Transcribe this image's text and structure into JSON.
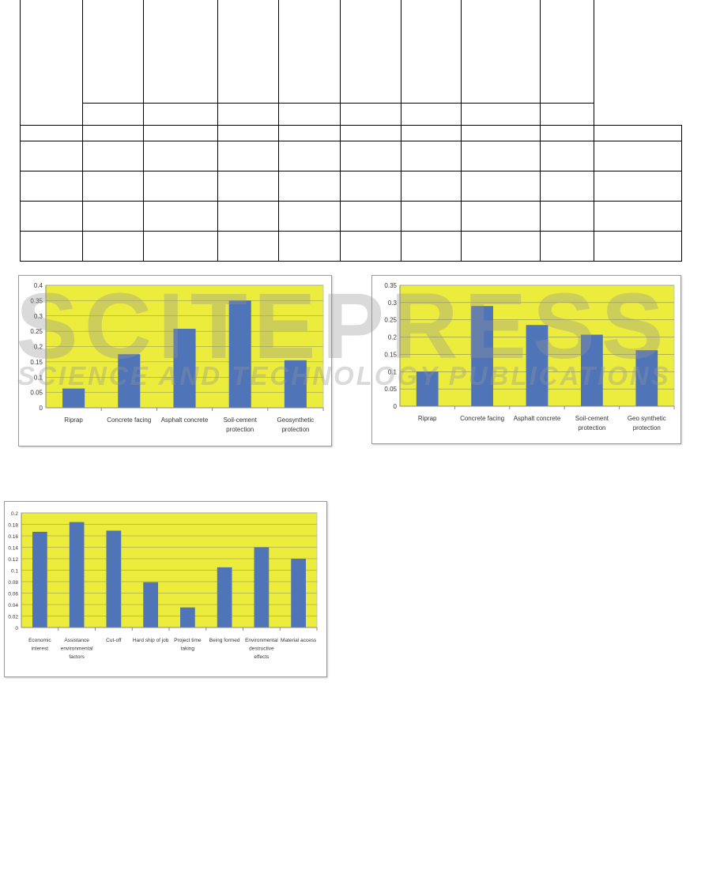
{
  "watermark": {
    "main": "SCITEPRESS",
    "sub": "SCIENCE AND TECHNOLOGY PUBLICATIONS"
  },
  "colors": {
    "plot_bg": "#ecec3c",
    "bar": "#4f74b8",
    "grid": "#8c8c5a"
  },
  "chart_data": [
    {
      "type": "bar",
      "categories": [
        "Riprap",
        "Concrete facing",
        "Asphalt concrete",
        "Soil-cement protection",
        "Geosynthetic protection"
      ],
      "values": [
        0.063,
        0.175,
        0.258,
        0.35,
        0.155
      ],
      "ylim": [
        0,
        0.4
      ],
      "yticks": [
        "0",
        "0.05",
        "0.1",
        "0.15",
        "0.2",
        "0.25",
        "0.3",
        "0.35",
        "0.4"
      ],
      "grid": true
    },
    {
      "type": "bar",
      "categories": [
        "Riprap",
        "Concrete facing",
        "Asphalt concrete",
        "Soil-cement protection",
        "Geo synthetic protection"
      ],
      "values": [
        0.1,
        0.29,
        0.235,
        0.207,
        0.162
      ],
      "ylim": [
        0,
        0.35
      ],
      "yticks": [
        "0",
        "0.05",
        "0.1",
        "0.15",
        "0.2",
        "0.25",
        "0.3",
        "0.35"
      ],
      "grid": true
    },
    {
      "type": "bar",
      "categories": [
        "Economic interest",
        "Assistance environmental factors",
        "Cut-off",
        "Hard ship of job",
        "Project time taking",
        "Being formed",
        "Environmental destructive effects",
        "Material access"
      ],
      "values": [
        0.167,
        0.184,
        0.169,
        0.079,
        0.035,
        0.105,
        0.14,
        0.12
      ],
      "ylim": [
        0,
        0.2
      ],
      "yticks": [
        "0",
        "0.02",
        "0.04",
        "0.06",
        "0.08",
        "0.1",
        "0.12",
        "0.14",
        "0.16",
        "0.18",
        "0.2"
      ],
      "grid": true
    }
  ]
}
